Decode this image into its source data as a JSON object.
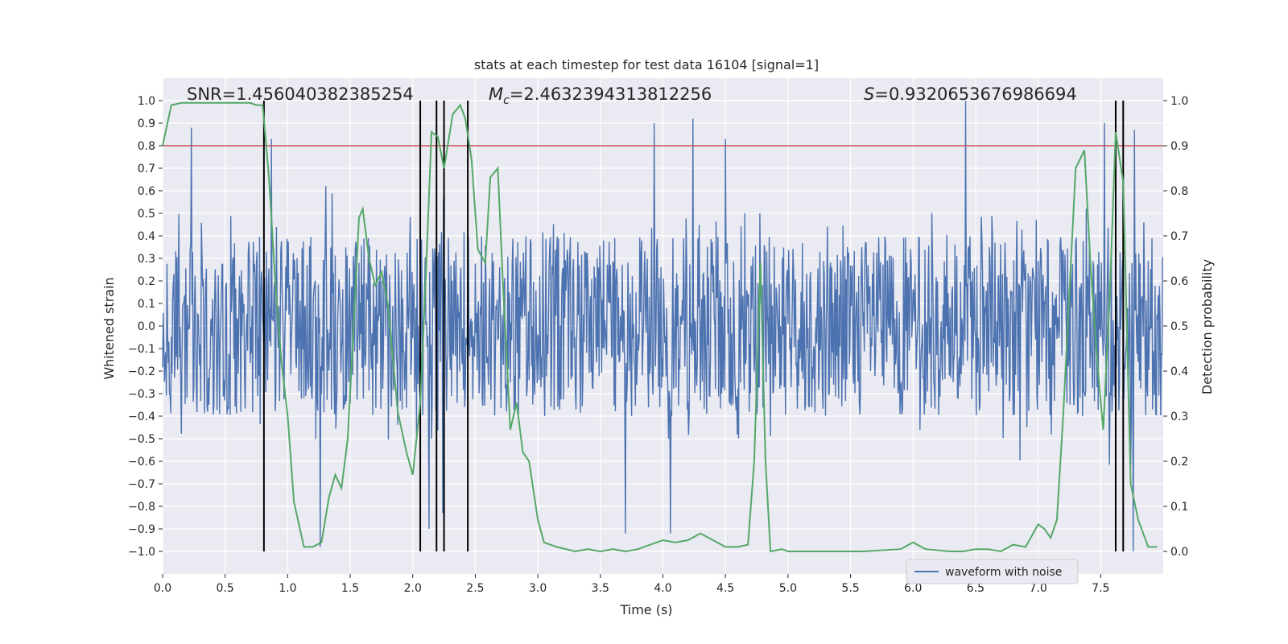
{
  "chart_data": {
    "type": "line",
    "title": "stats at each timestep for test data 16104 [signal=1]",
    "xlabel": "Time (s)",
    "ylabel_left": "Whitened strain",
    "ylabel_right": "Detection probability",
    "xlim": [
      0.0,
      8.0
    ],
    "ylim_left": [
      -1.1,
      1.1
    ],
    "ylim_right": [
      -0.05,
      1.05
    ],
    "xticks": [
      "0.0",
      "0.5",
      "1.0",
      "1.5",
      "2.0",
      "2.5",
      "3.0",
      "3.5",
      "4.0",
      "4.5",
      "5.0",
      "5.5",
      "6.0",
      "6.5",
      "7.0",
      "7.5"
    ],
    "yticks_left": [
      "−1.0",
      "−0.9",
      "−0.8",
      "−0.7",
      "−0.6",
      "−0.5",
      "−0.4",
      "−0.3",
      "−0.2",
      "−0.1",
      "0.0",
      "0.1",
      "0.2",
      "0.3",
      "0.4",
      "0.5",
      "0.6",
      "0.7",
      "0.8",
      "0.9",
      "1.0"
    ],
    "yticks_right": [
      "0.0",
      "0.1",
      "0.2",
      "0.3",
      "0.4",
      "0.5",
      "0.6",
      "0.7",
      "0.8",
      "0.9",
      "1.0"
    ],
    "annotations": {
      "snr": "SNR=1.456040382385254",
      "mc_symbol": "M",
      "mc_sub": "c",
      "mc_value": "=2.4632394313812256",
      "s_symbol": "S",
      "s_value": "=0.9320653676986694"
    },
    "threshold": {
      "axis": "right",
      "value": 0.9,
      "color": "#c44e52"
    },
    "vlines": {
      "x": [
        0.81,
        2.06,
        2.19,
        2.25,
        2.44,
        7.62,
        7.68
      ],
      "ymin": -1.0,
      "ymax": 1.0,
      "color": "#000000"
    },
    "series": [
      {
        "name": "waveform with noise",
        "axis": "left",
        "color": "#4c72b0",
        "duration": 8.0,
        "sample_count": 1600,
        "typical_range": [
          -0.4,
          0.4
        ],
        "peaks": [
          {
            "x": 0.23,
            "y": 0.88
          },
          {
            "x": 0.87,
            "y": 0.83
          },
          {
            "x": 1.26,
            "y": -0.98
          },
          {
            "x": 2.13,
            "y": -0.9
          },
          {
            "x": 2.24,
            "y": -0.83
          },
          {
            "x": 3.7,
            "y": -0.92
          },
          {
            "x": 3.93,
            "y": 0.9
          },
          {
            "x": 4.06,
            "y": -0.92
          },
          {
            "x": 4.24,
            "y": 0.92
          },
          {
            "x": 4.5,
            "y": 0.83
          },
          {
            "x": 6.42,
            "y": 1.0
          },
          {
            "x": 7.53,
            "y": 0.9
          },
          {
            "x": 7.76,
            "y": -1.0
          },
          {
            "x": 7.77,
            "y": 0.87
          }
        ]
      },
      {
        "name": "",
        "axis": "right",
        "color": "#55a868",
        "x": [
          0.0,
          0.07,
          0.15,
          0.25,
          0.35,
          0.45,
          0.55,
          0.62,
          0.7,
          0.75,
          0.8,
          0.85,
          0.9,
          0.95,
          1.0,
          1.05,
          1.13,
          1.2,
          1.27,
          1.33,
          1.38,
          1.43,
          1.48,
          1.52,
          1.57,
          1.6,
          1.65,
          1.7,
          1.75,
          1.8,
          1.88,
          1.95,
          2.0,
          2.06,
          2.1,
          2.15,
          2.2,
          2.25,
          2.32,
          2.38,
          2.42,
          2.47,
          2.52,
          2.58,
          2.62,
          2.68,
          2.72,
          2.78,
          2.83,
          2.88,
          2.93,
          3.0,
          3.05,
          3.15,
          3.3,
          3.4,
          3.5,
          3.6,
          3.7,
          3.8,
          3.9,
          4.0,
          4.1,
          4.2,
          4.3,
          4.4,
          4.5,
          4.6,
          4.68,
          4.73,
          4.78,
          4.82,
          4.86,
          4.95,
          5.0,
          5.1,
          5.3,
          5.6,
          5.9,
          6.0,
          6.1,
          6.3,
          6.4,
          6.5,
          6.6,
          6.7,
          6.8,
          6.9,
          7.0,
          7.05,
          7.1,
          7.15,
          7.2,
          7.3,
          7.37,
          7.42,
          7.47,
          7.52,
          7.57,
          7.62,
          7.68,
          7.74,
          7.8,
          7.88,
          7.95
        ],
        "y": [
          0.9,
          0.99,
          0.995,
          0.995,
          0.995,
          0.995,
          0.995,
          0.995,
          0.995,
          0.99,
          0.99,
          0.83,
          0.6,
          0.42,
          0.3,
          0.11,
          0.01,
          0.01,
          0.02,
          0.12,
          0.17,
          0.14,
          0.25,
          0.46,
          0.74,
          0.76,
          0.65,
          0.59,
          0.62,
          0.55,
          0.31,
          0.22,
          0.17,
          0.33,
          0.58,
          0.93,
          0.92,
          0.85,
          0.97,
          0.99,
          0.96,
          0.87,
          0.67,
          0.64,
          0.83,
          0.85,
          0.6,
          0.27,
          0.33,
          0.22,
          0.2,
          0.07,
          0.02,
          0.01,
          0.0,
          0.005,
          0.0,
          0.005,
          0.0,
          0.005,
          0.015,
          0.025,
          0.02,
          0.025,
          0.04,
          0.025,
          0.01,
          0.01,
          0.015,
          0.2,
          0.64,
          0.2,
          0.0,
          0.005,
          0.0,
          0.0,
          0.0,
          0.0,
          0.005,
          0.02,
          0.005,
          0.0,
          0.0,
          0.005,
          0.005,
          0.0,
          0.015,
          0.01,
          0.06,
          0.05,
          0.03,
          0.07,
          0.3,
          0.85,
          0.89,
          0.63,
          0.43,
          0.27,
          0.55,
          0.93,
          0.82,
          0.15,
          0.07,
          0.01,
          0.01
        ]
      }
    ],
    "legend": {
      "placement": "bottom-right",
      "entries": [
        "waveform with noise"
      ]
    },
    "grid": true,
    "background": "#eaeaf2"
  }
}
